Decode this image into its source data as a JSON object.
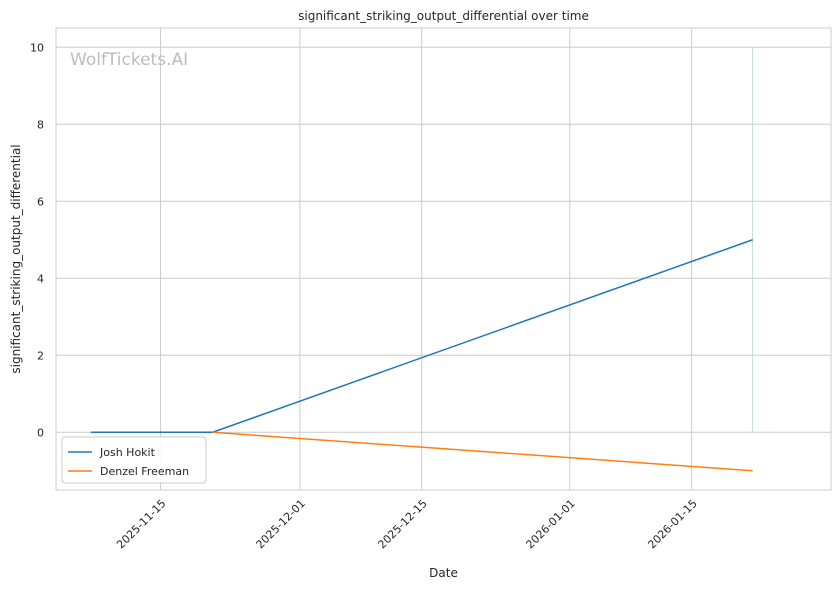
{
  "watermark": "WolfTickets.AI",
  "chart_data": {
    "type": "line",
    "title": "significant_striking_output_differential over time",
    "xlabel": "Date",
    "ylabel": "significant_striking_output_differential",
    "x_type": "date",
    "xlim": [
      "2025-11-03",
      "2026-01-31"
    ],
    "ylim": [
      -1.5,
      10.5
    ],
    "x_ticks": [
      "2025-11-15",
      "2025-12-01",
      "2025-12-15",
      "2026-01-01",
      "2026-01-15"
    ],
    "y_ticks": [
      0,
      2,
      4,
      6,
      8,
      10
    ],
    "grid": true,
    "legend_position": "lower-left",
    "marker_line_date": "2026-01-22",
    "series": [
      {
        "name": "Josh Hokit",
        "color": "#1f77b4",
        "points": [
          {
            "x": "2025-11-07",
            "y": 0
          },
          {
            "x": "2025-11-21",
            "y": 0
          },
          {
            "x": "2026-01-22",
            "y": 5
          }
        ]
      },
      {
        "name": "Denzel Freeman",
        "color": "#ff7f0e",
        "points": [
          {
            "x": "2025-11-21",
            "y": 0
          },
          {
            "x": "2026-01-22",
            "y": -1
          }
        ]
      }
    ]
  }
}
